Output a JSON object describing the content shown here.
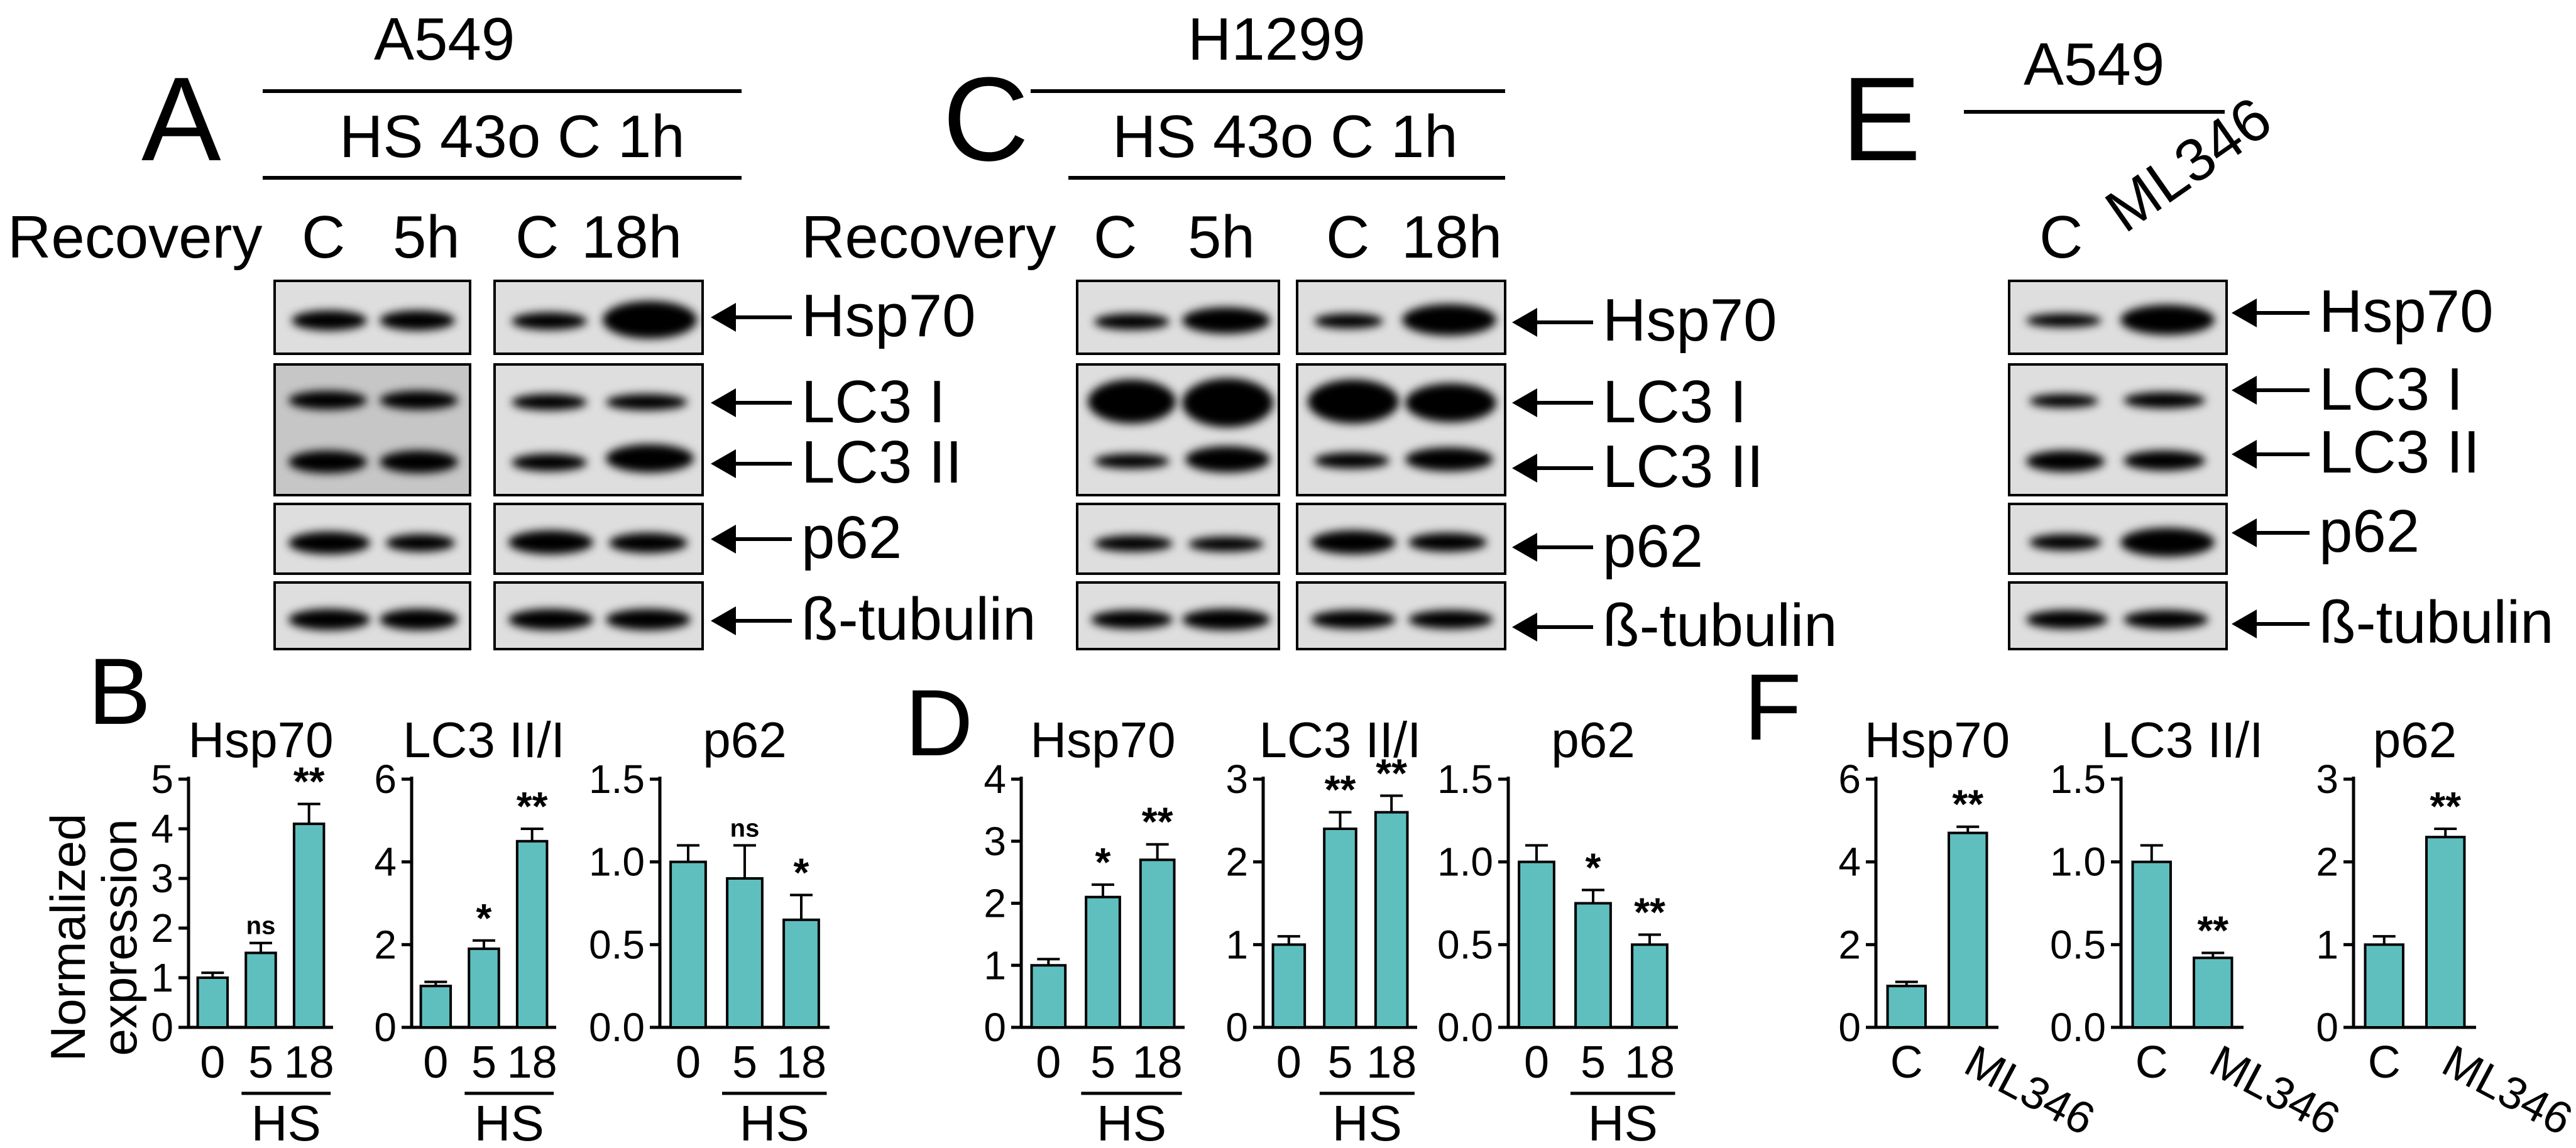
{
  "panels": {
    "A": {
      "letter": "A",
      "cell_line": "A549",
      "treatment": "HS 43o C 1h",
      "recovery_label": "Recovery",
      "lanes": [
        "C",
        "5h",
        "C",
        "18h"
      ],
      "bands": [
        "Hsp70",
        "LC3 I",
        "LC3 II",
        "p62",
        "ß-tubulin"
      ]
    },
    "C": {
      "letter": "C",
      "cell_line": "H1299",
      "treatment": "HS 43o C 1h",
      "recovery_label": "Recovery",
      "lanes": [
        "C",
        "5h",
        "C",
        "18h"
      ],
      "bands": [
        "Hsp70",
        "LC3 I",
        "LC3 II",
        "p62",
        "ß-tubulin"
      ]
    },
    "E": {
      "letter": "E",
      "cell_line": "A549",
      "lanes": [
        "C",
        "ML346"
      ],
      "bands": [
        "Hsp70",
        "LC3 I",
        "LC3 II",
        "p62",
        "ß-tubulin"
      ]
    },
    "B": {
      "letter": "B",
      "ylabel": "Normalized expression",
      "group_label": "HS"
    },
    "D": {
      "letter": "D",
      "group_label": "HS"
    },
    "F": {
      "letter": "F"
    }
  },
  "colors": {
    "bar": "#5fbfbf",
    "axis": "#000000"
  },
  "chart_data": [
    {
      "type": "bar",
      "panel": "B",
      "title": "Hsp70",
      "categories": [
        "0",
        "5",
        "18"
      ],
      "values": [
        1.0,
        1.5,
        4.1
      ],
      "errors": [
        0.1,
        0.2,
        0.4
      ],
      "ylim": [
        0,
        5
      ],
      "yticks": [
        "0",
        "1",
        "2",
        "3",
        "4",
        "5"
      ],
      "sig": [
        "",
        "ns",
        "**"
      ]
    },
    {
      "type": "bar",
      "panel": "B",
      "title": "LC3 II/I",
      "categories": [
        "0",
        "5",
        "18"
      ],
      "values": [
        1.0,
        1.9,
        4.5
      ],
      "errors": [
        0.1,
        0.2,
        0.3
      ],
      "ylim": [
        0,
        6
      ],
      "yticks": [
        "0",
        "2",
        "4",
        "6"
      ],
      "sig": [
        "",
        "*",
        "**"
      ]
    },
    {
      "type": "bar",
      "panel": "B",
      "title": "p62",
      "categories": [
        "0",
        "5",
        "18"
      ],
      "values": [
        1.0,
        0.9,
        0.65
      ],
      "errors": [
        0.1,
        0.2,
        0.15
      ],
      "ylim": [
        0,
        1.5
      ],
      "yticks": [
        "0.0",
        "0.5",
        "1.0",
        "1.5"
      ],
      "sig": [
        "",
        "ns",
        "*"
      ]
    },
    {
      "type": "bar",
      "panel": "D",
      "title": "Hsp70",
      "categories": [
        "0",
        "5",
        "18"
      ],
      "values": [
        1.0,
        2.1,
        2.7
      ],
      "errors": [
        0.1,
        0.2,
        0.25
      ],
      "ylim": [
        0,
        4
      ],
      "yticks": [
        "0",
        "1",
        "2",
        "3",
        "4"
      ],
      "sig": [
        "",
        "*",
        "**"
      ]
    },
    {
      "type": "bar",
      "panel": "D",
      "title": "LC3 II/I",
      "categories": [
        "0",
        "5",
        "18"
      ],
      "values": [
        1.0,
        2.4,
        2.6
      ],
      "errors": [
        0.1,
        0.2,
        0.2
      ],
      "ylim": [
        0,
        3
      ],
      "yticks": [
        "0",
        "1",
        "2",
        "3"
      ],
      "sig": [
        "",
        "**",
        "**"
      ]
    },
    {
      "type": "bar",
      "panel": "D",
      "title": "p62",
      "categories": [
        "0",
        "5",
        "18"
      ],
      "values": [
        1.0,
        0.75,
        0.5
      ],
      "errors": [
        0.1,
        0.08,
        0.06
      ],
      "ylim": [
        0,
        1.5
      ],
      "yticks": [
        "0.0",
        "0.5",
        "1.0",
        "1.5"
      ],
      "sig": [
        "",
        "*",
        "**"
      ]
    },
    {
      "type": "bar",
      "panel": "F",
      "title": "Hsp70",
      "categories": [
        "C",
        "ML346"
      ],
      "values": [
        1.0,
        4.7
      ],
      "errors": [
        0.1,
        0.15
      ],
      "ylim": [
        0,
        6
      ],
      "yticks": [
        "0",
        "2",
        "4",
        "6"
      ],
      "sig": [
        "",
        "**"
      ]
    },
    {
      "type": "bar",
      "panel": "F",
      "title": "LC3 II/I",
      "categories": [
        "C",
        "ML346"
      ],
      "values": [
        1.0,
        0.42
      ],
      "errors": [
        0.1,
        0.03
      ],
      "ylim": [
        0,
        1.5
      ],
      "yticks": [
        "0.0",
        "0.5",
        "1.0",
        "1.5"
      ],
      "sig": [
        "",
        "**"
      ]
    },
    {
      "type": "bar",
      "panel": "F",
      "title": "p62",
      "categories": [
        "C",
        "ML346"
      ],
      "values": [
        1.0,
        2.3
      ],
      "errors": [
        0.1,
        0.1
      ],
      "ylim": [
        0,
        3
      ],
      "yticks": [
        "0",
        "1",
        "2",
        "3"
      ],
      "sig": [
        "",
        "**"
      ]
    }
  ]
}
